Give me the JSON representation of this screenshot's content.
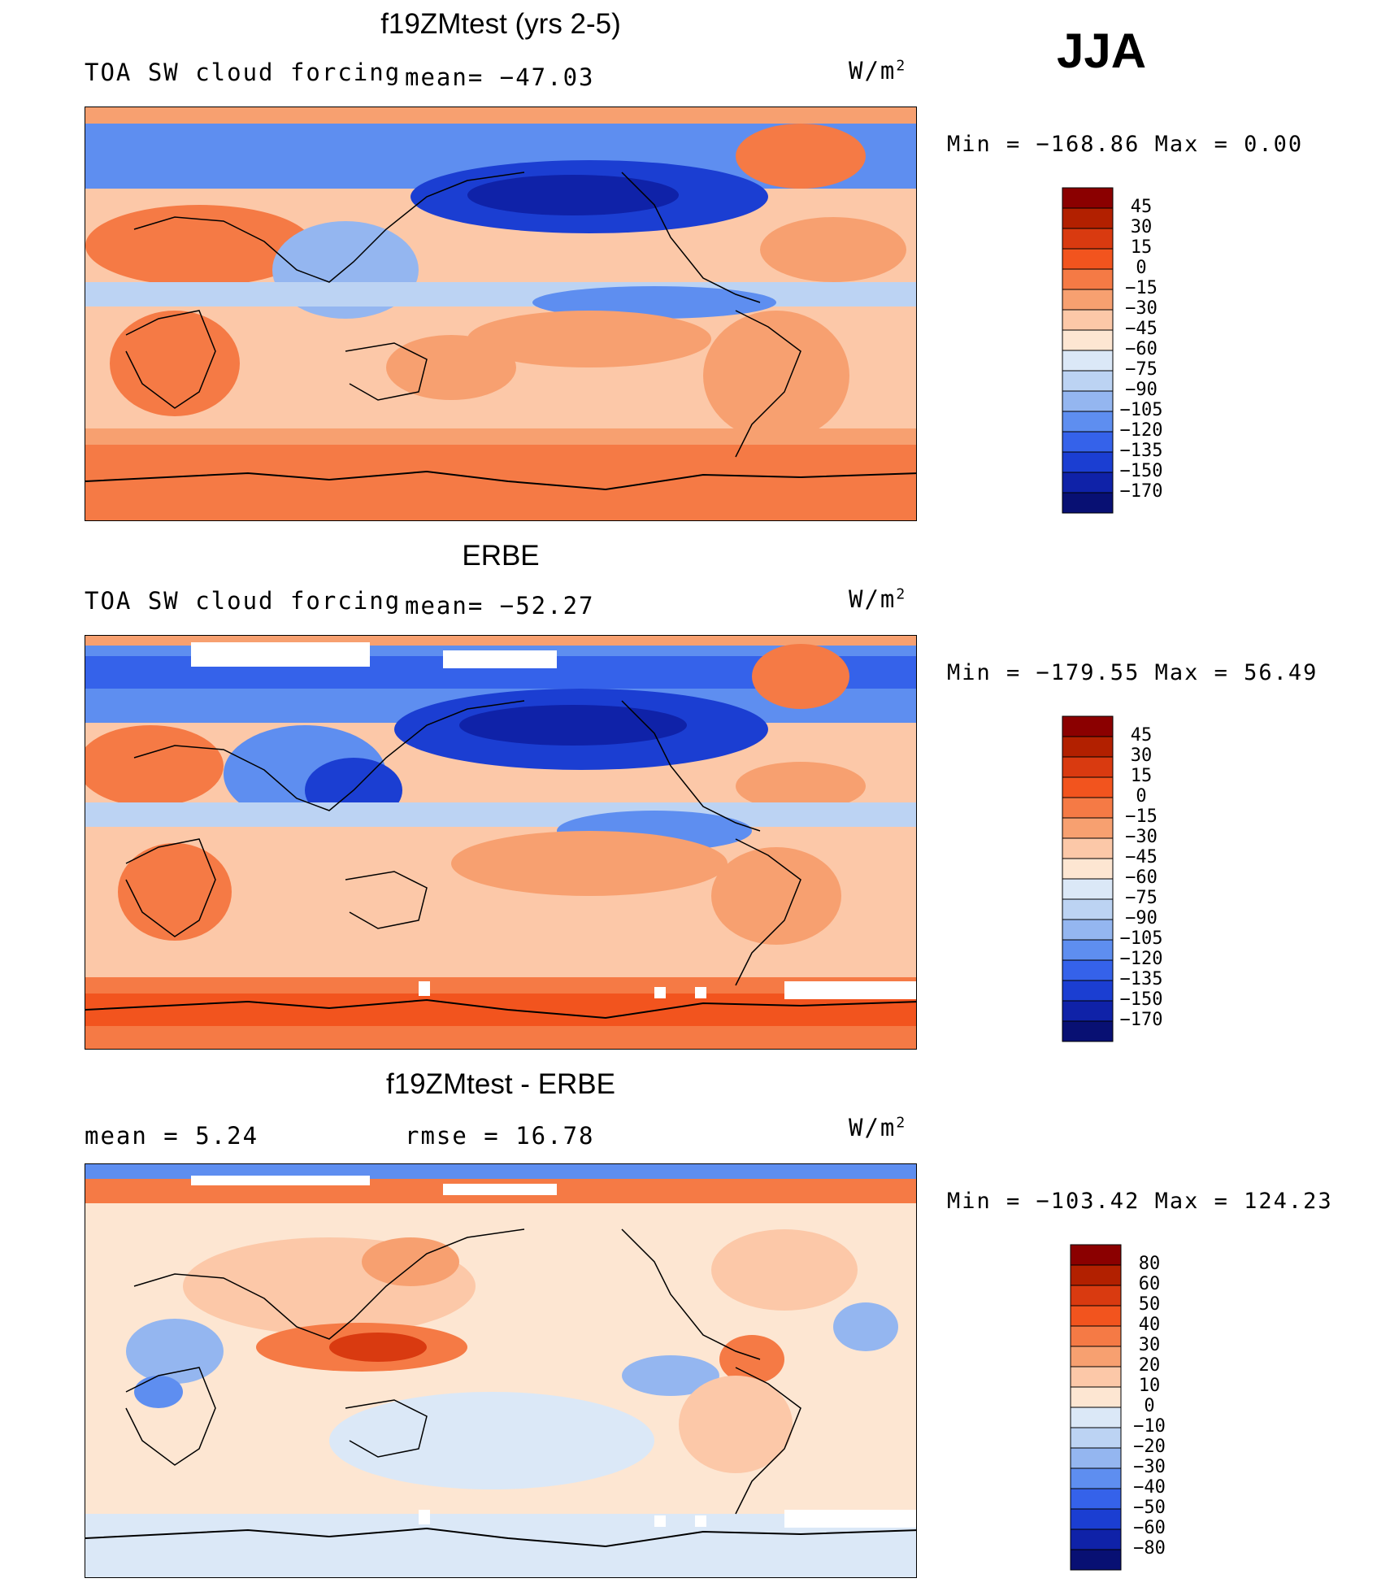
{
  "season": "JJA",
  "panels": [
    {
      "title": "f19ZMtest (yrs 2-5)",
      "left_label": "TOA SW cloud forcing",
      "center_label": "mean= −47.03",
      "units": "W/m",
      "units_sup": "2",
      "minmax": "Min = −168.86 Max =   0.00",
      "colorbar_labels": [
        "45",
        "30",
        "15",
        "0",
        "−15",
        "−30",
        "−45",
        "−60",
        "−75",
        "−90",
        "−105",
        "−120",
        "−135",
        "−150",
        "−170"
      ]
    },
    {
      "title": "ERBE",
      "left_label": "TOA SW cloud forcing",
      "center_label": "mean= −52.27",
      "units": "W/m",
      "units_sup": "2",
      "minmax": "Min = −179.55 Max =  56.49",
      "colorbar_labels": [
        "45",
        "30",
        "15",
        "0",
        "−15",
        "−30",
        "−45",
        "−60",
        "−75",
        "−90",
        "−105",
        "−120",
        "−135",
        "−150",
        "−170"
      ]
    },
    {
      "title": "f19ZMtest - ERBE",
      "left_label": "mean =    5.24",
      "center_label": "rmse =   16.78",
      "units": "W/m",
      "units_sup": "2",
      "minmax": "Min = −103.42 Max = 124.23",
      "colorbar_labels": [
        "80",
        "60",
        "50",
        "40",
        "30",
        "20",
        "10",
        "0",
        "−10",
        "−20",
        "−30",
        "−40",
        "−50",
        "−60",
        "−80"
      ]
    }
  ],
  "colors": {
    "palette": [
      "#8b0000",
      "#b22000",
      "#d93a10",
      "#f2541e",
      "#f57a45",
      "#f7a070",
      "#fcc8a8",
      "#fde6d2",
      "#dbe8f7",
      "#bcd3f3",
      "#94b6f0",
      "#5e8ef0",
      "#3562ea",
      "#1b3ed2",
      "#0f22a8",
      "#081073"
    ]
  }
}
